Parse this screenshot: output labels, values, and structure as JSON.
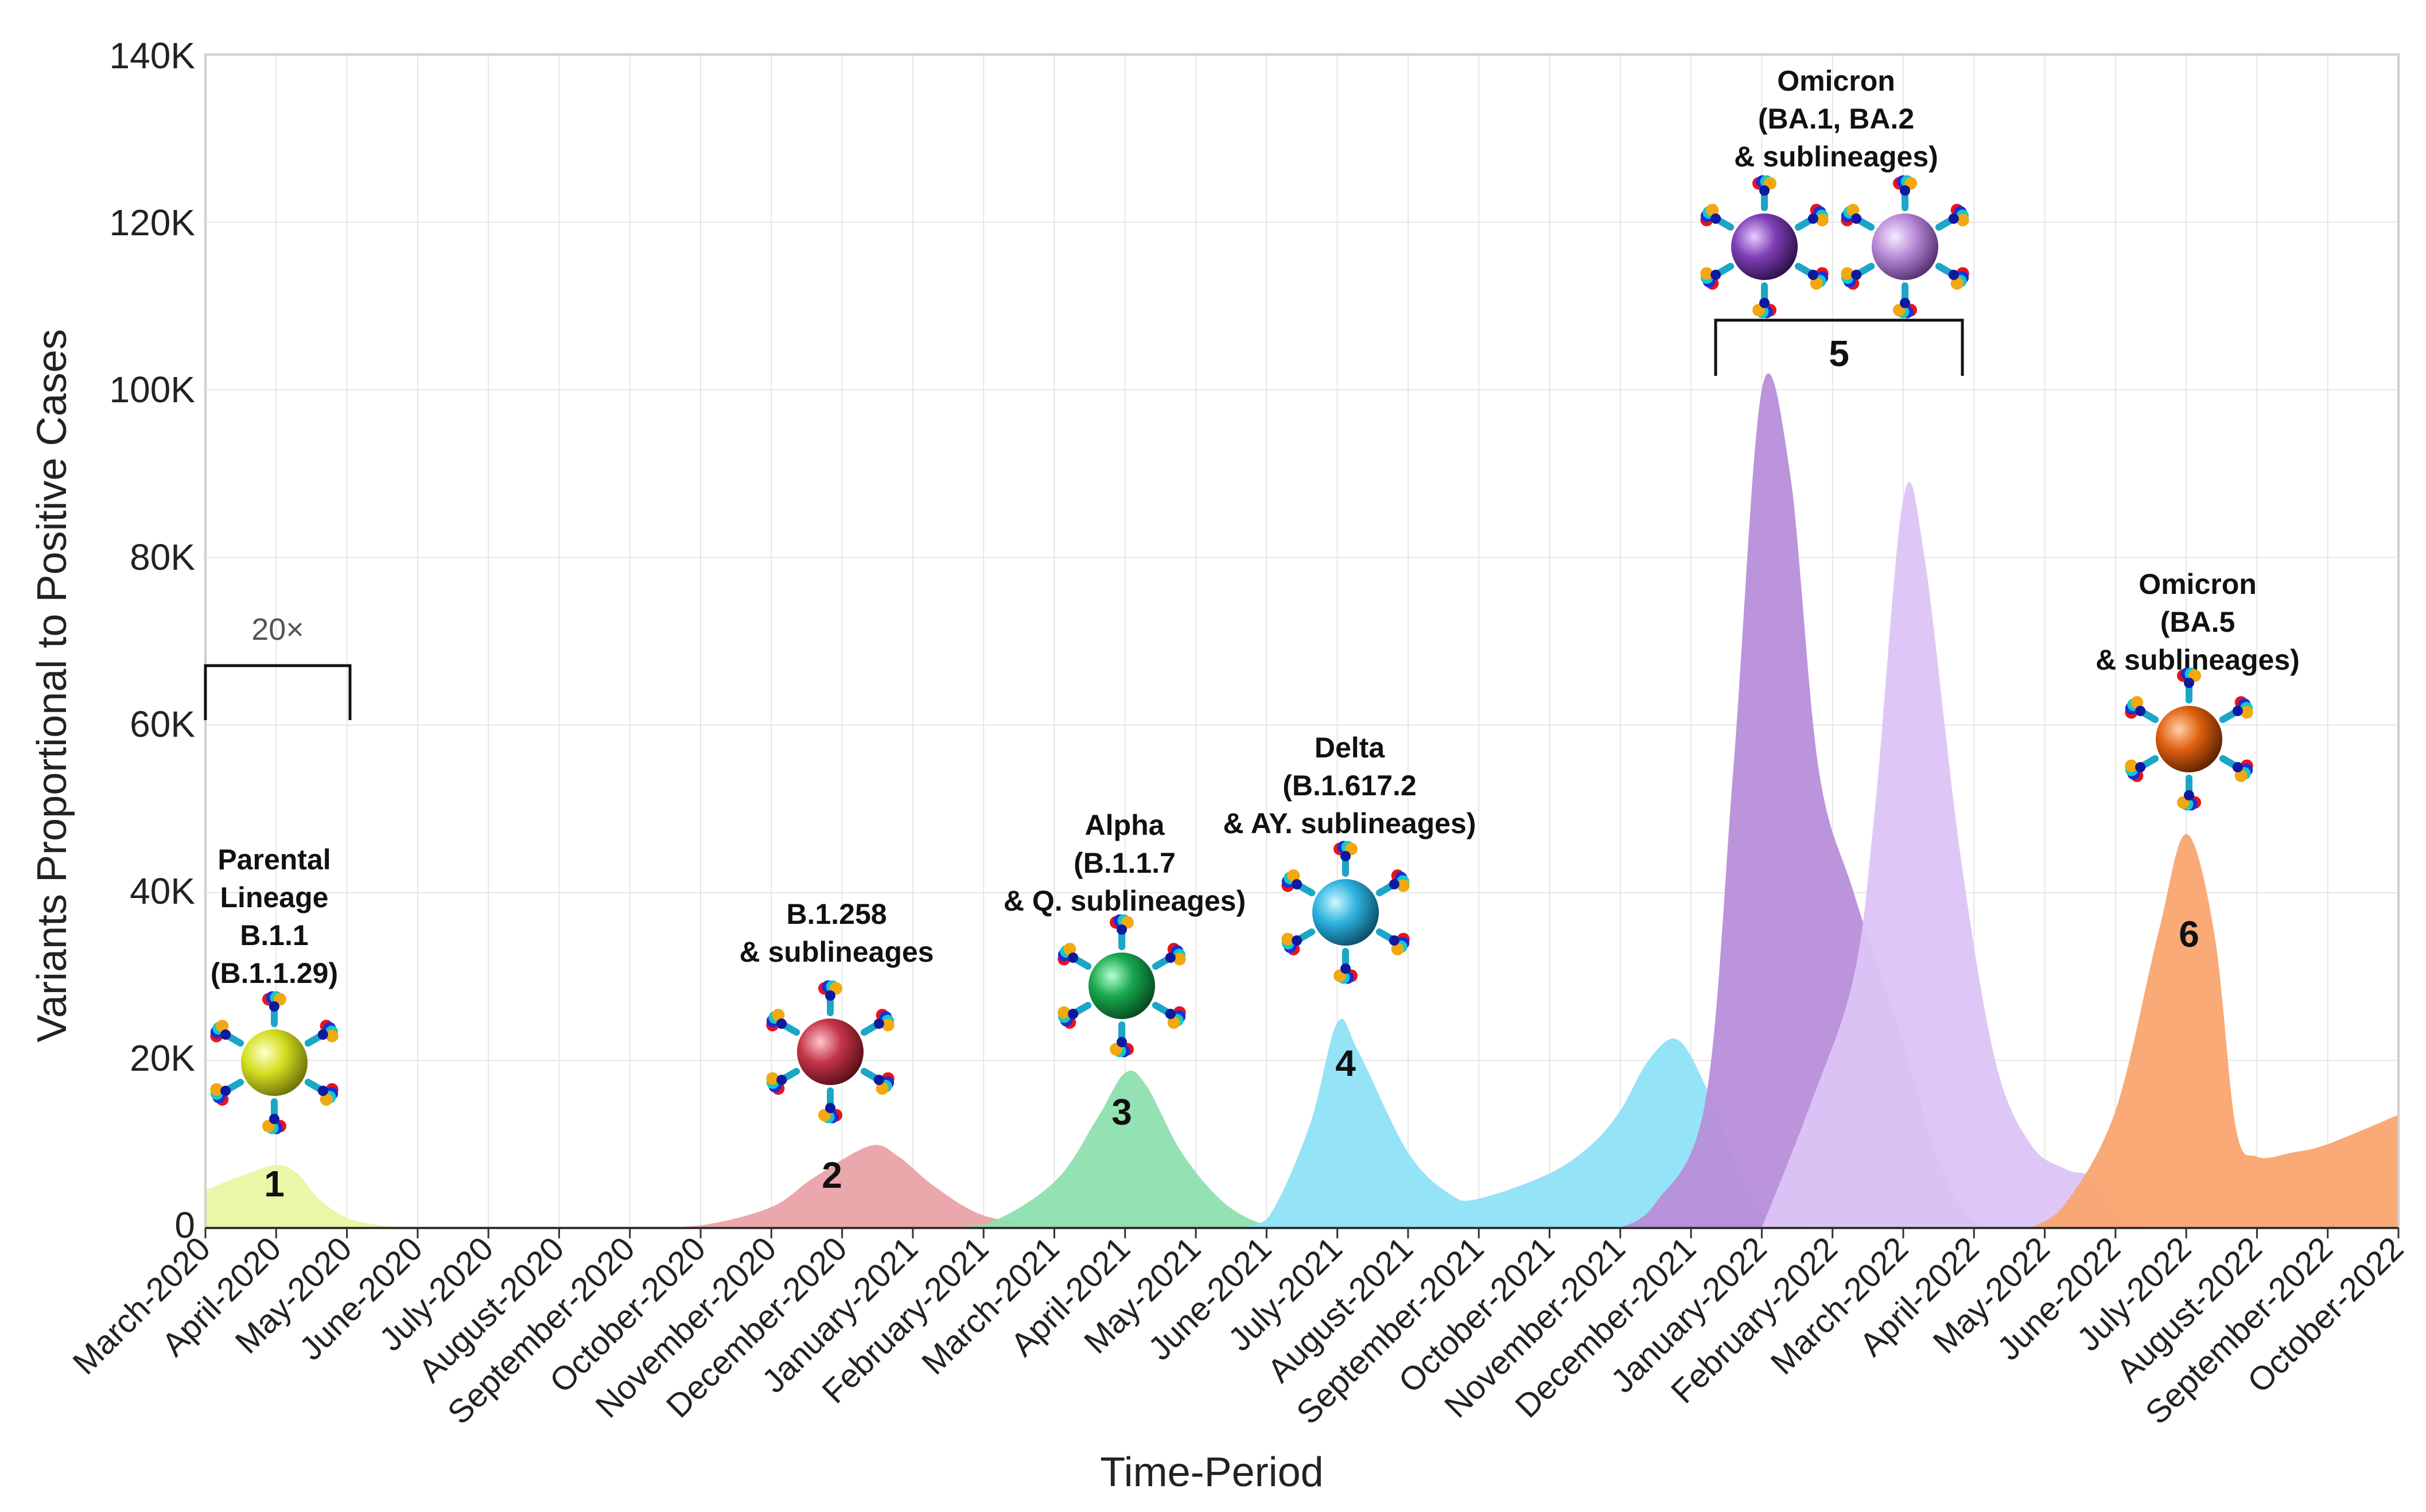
{
  "chart_data": {
    "type": "area",
    "xlabel": "Time-Period",
    "ylabel": "Variants Proportional to Positive Cases",
    "ylim": [
      0,
      140000
    ],
    "yticks": [
      0,
      20000,
      40000,
      60000,
      80000,
      100000,
      120000,
      140000
    ],
    "ytick_labels": [
      "0",
      "20K",
      "40K",
      "60K",
      "80K",
      "100K",
      "120K",
      "140K"
    ],
    "grid": true,
    "categories": [
      "March-2020",
      "April-2020",
      "May-2020",
      "June-2020",
      "July-2020",
      "August-2020",
      "September-2020",
      "October-2020",
      "November-2020",
      "December-2020",
      "January-2021",
      "February-2021",
      "March-2021",
      "April-2021",
      "May-2021",
      "June-2021",
      "July-2021",
      "August-2021",
      "September-2021",
      "October-2021",
      "November-2021",
      "December-2021",
      "January-2022",
      "February-2022",
      "March-2022",
      "April-2022",
      "May-2022",
      "June-2022",
      "July-2022",
      "August-2022",
      "September-2022",
      "October-2022"
    ],
    "series": [
      {
        "name": "Parental Lineage B.1.1 (B.1.1.29)",
        "color": "#e9f5a3",
        "points": [
          [
            0,
            4500
          ],
          [
            0.5,
            6200
          ],
          [
            1,
            7500
          ],
          [
            1.3,
            6500
          ],
          [
            1.6,
            3500
          ],
          [
            2,
            1200
          ],
          [
            2.5,
            300
          ],
          [
            3,
            0
          ]
        ]
      },
      {
        "name": "B.1.258 & sublineages",
        "color": "#eaa3a8",
        "points": [
          [
            6,
            0
          ],
          [
            7,
            300
          ],
          [
            8,
            2500
          ],
          [
            8.6,
            6000
          ],
          [
            9.4,
            9800
          ],
          [
            9.8,
            8500
          ],
          [
            10.3,
            5000
          ],
          [
            11,
            1500
          ],
          [
            12,
            0
          ]
        ]
      },
      {
        "name": "Alpha (B.1.1.7 & Q. sublineages)",
        "color": "#8edfaf",
        "points": [
          [
            10,
            0
          ],
          [
            11,
            400
          ],
          [
            12,
            5500
          ],
          [
            12.6,
            13000
          ],
          [
            13,
            18500
          ],
          [
            13.3,
            17000
          ],
          [
            13.8,
            9000
          ],
          [
            14.4,
            3000
          ],
          [
            15,
            300
          ],
          [
            15.5,
            0
          ]
        ]
      },
      {
        "name": "Delta (B.1.617.2 & AY. sublineages)",
        "color": "#8ee2f7",
        "points": [
          [
            14.5,
            0
          ],
          [
            15,
            1000
          ],
          [
            15.6,
            12000
          ],
          [
            16,
            24500
          ],
          [
            16.3,
            21000
          ],
          [
            17,
            9000
          ],
          [
            17.6,
            4000
          ],
          [
            18,
            3500
          ],
          [
            19,
            6500
          ],
          [
            19.6,
            10000
          ],
          [
            20,
            14000
          ],
          [
            20.4,
            20000
          ],
          [
            20.8,
            22500
          ],
          [
            21.2,
            17000
          ],
          [
            21.7,
            6000
          ],
          [
            22,
            2000
          ],
          [
            22.5,
            500
          ],
          [
            23,
            0
          ]
        ]
      },
      {
        "name": "Omicron BA.1",
        "color": "#b78ed9",
        "points": [
          [
            20,
            0
          ],
          [
            20.5,
            3000
          ],
          [
            21.2,
            15000
          ],
          [
            21.6,
            55000
          ],
          [
            22,
            100000
          ],
          [
            22.4,
            90000
          ],
          [
            22.8,
            55000
          ],
          [
            23.3,
            40000
          ],
          [
            24,
            22000
          ],
          [
            24.5,
            8000
          ],
          [
            25,
            500
          ],
          [
            25.5,
            0
          ]
        ]
      },
      {
        "name": "Omicron BA.2",
        "color": "#dcc4f7",
        "points": [
          [
            22,
            0
          ],
          [
            22.7,
            15000
          ],
          [
            23.3,
            30000
          ],
          [
            23.6,
            50000
          ],
          [
            24,
            87000
          ],
          [
            24.3,
            80000
          ],
          [
            24.8,
            45000
          ],
          [
            25.3,
            20000
          ],
          [
            25.8,
            10000
          ],
          [
            26.3,
            7000
          ],
          [
            26.7,
            6000
          ],
          [
            27,
            2000
          ],
          [
            27.5,
            0
          ]
        ]
      },
      {
        "name": "Omicron BA.5 & sublineages",
        "color": "#f9a56f",
        "points": [
          [
            25.8,
            0
          ],
          [
            26.3,
            3000
          ],
          [
            27,
            14000
          ],
          [
            27.6,
            35000
          ],
          [
            28,
            47000
          ],
          [
            28.4,
            35000
          ],
          [
            28.7,
            12000
          ],
          [
            29,
            8500
          ],
          [
            29.5,
            9000
          ],
          [
            30,
            10000
          ],
          [
            31,
            13500
          ]
        ]
      }
    ],
    "annotations": [
      {
        "id": "parental",
        "lines": [
          "Parental",
          "Lineage",
          "B.1.1",
          "(B.1.1.29)"
        ],
        "number": "1",
        "sphere": "#d4de1f"
      },
      {
        "id": "b1258",
        "lines": [
          "B.1.258",
          "& sublineages"
        ],
        "number": "2",
        "sphere": "#c43548"
      },
      {
        "id": "alpha",
        "lines": [
          "Alpha",
          "(B.1.1.7",
          "& Q. sublineages)"
        ],
        "number": "3",
        "sphere": "#18a84e"
      },
      {
        "id": "delta",
        "lines": [
          "Delta",
          "(B.1.617.2",
          "& AY. sublineages)"
        ],
        "number": "4",
        "sphere": "#2db3e0"
      },
      {
        "id": "omicron12",
        "lines": [
          "Omicron",
          "(BA.1, BA.2",
          "& sublineages)"
        ],
        "number": "5",
        "sphere": "#7e3fb5",
        "sphere2": "#b98ad9"
      },
      {
        "id": "omicron5",
        "lines": [
          "Omicron",
          "(BA.5",
          "& sublineages)"
        ],
        "number": "6",
        "sphere": "#e0600f"
      }
    ],
    "zoom_label": "20×"
  }
}
